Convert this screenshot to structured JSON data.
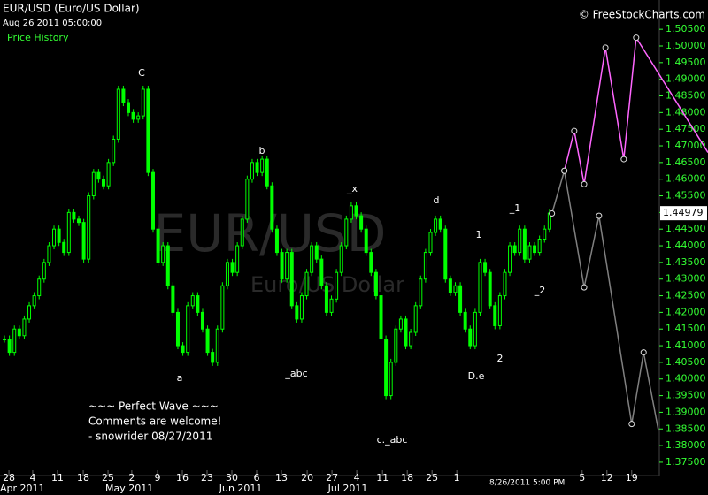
{
  "chart_data": {
    "type": "candlestick",
    "title": "EUR/USD (Euro/US Dollar)",
    "subtitle": "Aug 26 2011 05:00:00",
    "indicator": "Price History",
    "credit": "© FreeStockCharts.com",
    "watermark": "EUR/USD",
    "watermark_sub": "Euro/US Dollar",
    "comments": [
      "~~~ Perfect Wave ~~~",
      "Comments are welcome!",
      "- snowrider  08/27/2011"
    ],
    "annotations": [
      "C",
      "b",
      "_x",
      "d",
      "1",
      "_1",
      "_2",
      "a",
      "_abc",
      "c._abc",
      "D.e",
      "2"
    ],
    "last_price": {
      "value": 1.44979,
      "label": "1.44979"
    },
    "last_time": {
      "value": 105.5,
      "label": "8/26/2011 5:00 PM"
    },
    "color": "#00ff00",
    "values": [
      1.412,
      1.408,
      1.415,
      1.413,
      1.418,
      1.422,
      1.425,
      1.43,
      1.435,
      1.44,
      1.445,
      1.441,
      1.438,
      1.45,
      1.448,
      1.447,
      1.436,
      1.455,
      1.462,
      1.46,
      1.458,
      1.465,
      1.472,
      1.487,
      1.483,
      1.48,
      1.478,
      1.479,
      1.487,
      1.462,
      1.445,
      1.435,
      1.44,
      1.428,
      1.42,
      1.41,
      1.408,
      1.422,
      1.425,
      1.42,
      1.415,
      1.408,
      1.405,
      1.415,
      1.428,
      1.435,
      1.432,
      1.44,
      1.448,
      1.46,
      1.465,
      1.462,
      1.466,
      1.458,
      1.445,
      1.438,
      1.43,
      1.438,
      1.422,
      1.418,
      1.425,
      1.432,
      1.44,
      1.436,
      1.428,
      1.42,
      1.424,
      1.432,
      1.44,
      1.448,
      1.452,
      1.449,
      1.445,
      1.438,
      1.432,
      1.425,
      1.412,
      1.395,
      1.405,
      1.415,
      1.418,
      1.41,
      1.414,
      1.422,
      1.43,
      1.438,
      1.444,
      1.448,
      1.445,
      1.43,
      1.426,
      1.428,
      1.42,
      1.415,
      1.41,
      1.42,
      1.435,
      1.432,
      1.422,
      1.416,
      1.425,
      1.432,
      1.44,
      1.438,
      1.445,
      1.436,
      1.44,
      1.438,
      1.442,
      1.445,
      1.4498
    ],
    "series": [
      {
        "name": "Projection A",
        "color": "#ff66ff",
        "x": [
          113,
          115,
          117,
          121.3,
          125,
          127.5,
          142
        ],
        "values": [
          1.4625,
          1.4745,
          1.4585,
          1.4995,
          1.466,
          1.5025,
          1.468
        ]
      },
      {
        "name": "Projection B",
        "color": "#808080",
        "x": [
          110.5,
          113,
          117,
          120,
          126.6,
          129,
          132
        ],
        "values": [
          1.4497,
          1.4625,
          1.4275,
          1.449,
          1.3865,
          1.408,
          1.3845
        ]
      }
    ],
    "xlim": [
      -0.9,
      142
    ],
    "ylim": [
      1.371,
      1.5138
    ],
    "xticks": [
      {
        "value": 0.9,
        "label": "28"
      },
      {
        "value": 5.7,
        "label": "4"
      },
      {
        "value": 10.7,
        "label": "11"
      },
      {
        "value": 15.9,
        "label": "18"
      },
      {
        "value": 20.9,
        "label": "25"
      },
      {
        "value": 25.7,
        "label": "2"
      },
      {
        "value": 30.9,
        "label": "9"
      },
      {
        "value": 35.9,
        "label": "16"
      },
      {
        "value": 40.9,
        "label": "23"
      },
      {
        "value": 45.9,
        "label": "30"
      },
      {
        "value": 50.9,
        "label": "6"
      },
      {
        "value": 55.9,
        "label": "13"
      },
      {
        "value": 61.1,
        "label": "20"
      },
      {
        "value": 66.1,
        "label": "27"
      },
      {
        "value": 71.1,
        "label": "4"
      },
      {
        "value": 76.3,
        "label": "11"
      },
      {
        "value": 81.3,
        "label": "18"
      },
      {
        "value": 86.3,
        "label": "25"
      },
      {
        "value": 91.3,
        "label": "1"
      },
      {
        "value": 116.6,
        "label": "5"
      },
      {
        "value": 121.6,
        "label": "12"
      },
      {
        "value": 126.6,
        "label": "19"
      }
    ],
    "month_ticks": [
      {
        "value": 3.6,
        "label": "Apr 2011"
      },
      {
        "value": 25.2,
        "label": "May 2011"
      },
      {
        "value": 47.7,
        "label": "Jun 2011"
      },
      {
        "value": 69.3,
        "label": "Jul 2011"
      }
    ],
    "yticks": [
      {
        "value": 1.375,
        "label": "1.37500"
      },
      {
        "value": 1.38,
        "label": "1.38000"
      },
      {
        "value": 1.385,
        "label": "1.38500"
      },
      {
        "value": 1.39,
        "label": "1.39000"
      },
      {
        "value": 1.395,
        "label": "1.39500"
      },
      {
        "value": 1.4,
        "label": "1.40000"
      },
      {
        "value": 1.405,
        "label": "1.40500"
      },
      {
        "value": 1.41,
        "label": "1.41000"
      },
      {
        "value": 1.415,
        "label": "1.41500"
      },
      {
        "value": 1.42,
        "label": "1.42000"
      },
      {
        "value": 1.425,
        "label": "1.42500"
      },
      {
        "value": 1.43,
        "label": "1.43000"
      },
      {
        "value": 1.435,
        "label": "1.43500"
      },
      {
        "value": 1.44,
        "label": "1.44000"
      },
      {
        "value": 1.445,
        "label": "1.44500"
      },
      {
        "value": 1.45,
        "label": "1.45000"
      },
      {
        "value": 1.455,
        "label": "1.45500"
      },
      {
        "value": 1.46,
        "label": "1.46000"
      },
      {
        "value": 1.465,
        "label": "1.46500"
      },
      {
        "value": 1.47,
        "label": "1.47000"
      },
      {
        "value": 1.475,
        "label": "1.47500"
      },
      {
        "value": 1.48,
        "label": "1.48000"
      },
      {
        "value": 1.485,
        "label": "1.48500"
      },
      {
        "value": 1.49,
        "label": "1.49000"
      },
      {
        "value": 1.495,
        "label": "1.49500"
      },
      {
        "value": 1.5,
        "label": "1.50000"
      },
      {
        "value": 1.505,
        "label": "1.50500"
      }
    ]
  }
}
